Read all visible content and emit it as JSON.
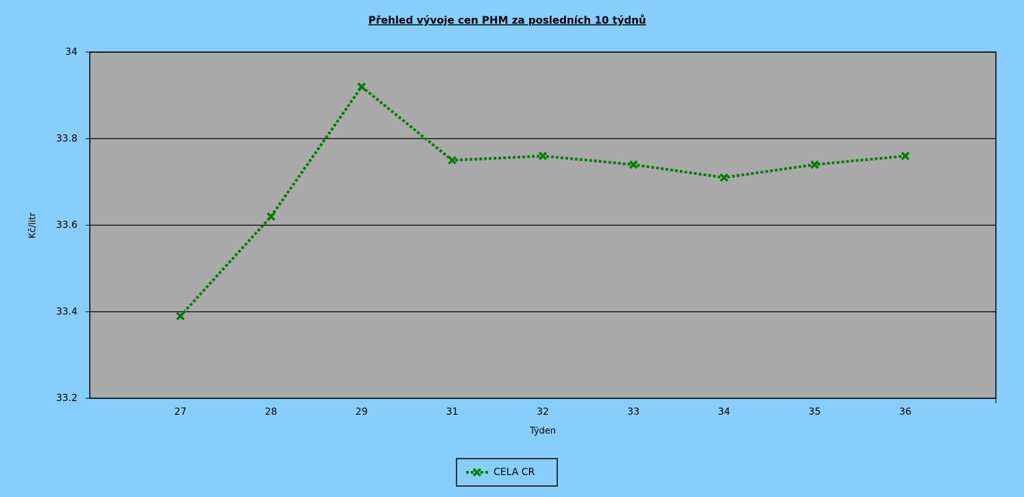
{
  "chart_data": {
    "type": "line",
    "title": "Přehled vývoje cen PHM za posledních 10 týdnů",
    "x_label": "Týden",
    "y_label": "Kč/litr",
    "categories": [
      "27",
      "28",
      "29",
      "31",
      "32",
      "33",
      "34",
      "35",
      "36"
    ],
    "series": [
      {
        "name": "CELA CR",
        "color": "#008000",
        "values": [
          33.39,
          33.62,
          33.92,
          33.75,
          33.76,
          33.74,
          33.71,
          33.74,
          33.76
        ]
      }
    ],
    "ylim": [
      33.2,
      34
    ],
    "yticks": [
      33.2,
      33.4,
      33.6,
      33.8,
      34
    ],
    "grid": true
  }
}
